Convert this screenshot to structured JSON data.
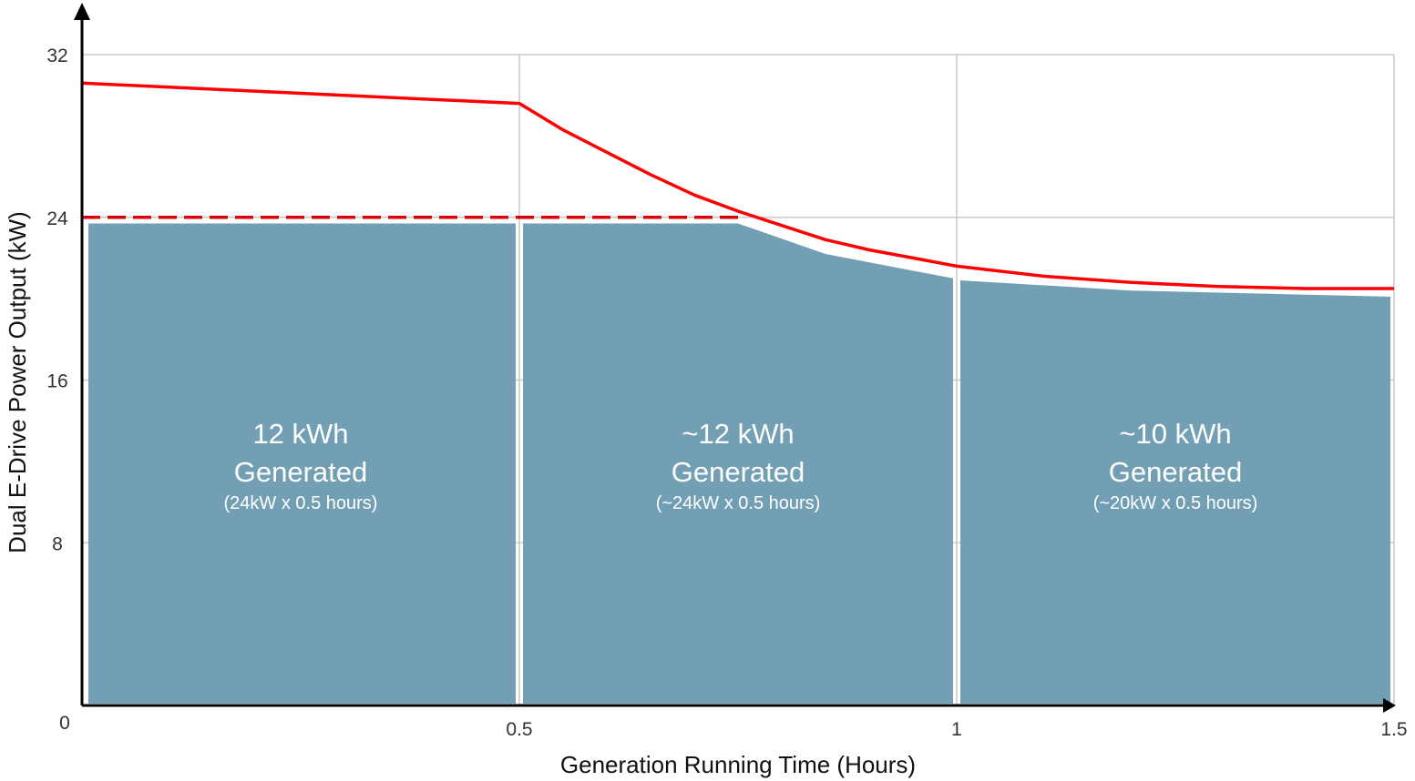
{
  "chart_data": {
    "type": "area",
    "xlabel": "Generation Running Time (Hours)",
    "ylabel": "Dual E-Drive Power Output (kW)",
    "xlim": [
      0,
      1.5
    ],
    "ylim": [
      0,
      32
    ],
    "x_ticks": [
      {
        "value": 0,
        "label": "0"
      },
      {
        "value": 0.5,
        "label": "0.5"
      },
      {
        "value": 1,
        "label": "1"
      },
      {
        "value": 1.5,
        "label": "1.5"
      }
    ],
    "y_ticks": [
      {
        "value": 8,
        "label": "8"
      },
      {
        "value": 16,
        "label": "16"
      },
      {
        "value": 24,
        "label": "24"
      },
      {
        "value": 32,
        "label": "32"
      }
    ],
    "grid": true,
    "max_output_line": {
      "color": "#ff0000",
      "x": [
        0,
        0.1,
        0.2,
        0.3,
        0.4,
        0.5,
        0.55,
        0.6,
        0.65,
        0.7,
        0.75,
        0.8,
        0.85,
        0.9,
        0.95,
        1.0,
        1.1,
        1.2,
        1.3,
        1.4,
        1.5
      ],
      "y": [
        30.6,
        30.4,
        30.2,
        30.0,
        29.8,
        29.6,
        28.3,
        27.2,
        26.1,
        25.1,
        24.3,
        23.6,
        22.9,
        22.4,
        22.0,
        21.6,
        21.1,
        20.8,
        20.6,
        20.5,
        20.5
      ]
    },
    "rated_line": {
      "color": "#dd0000",
      "style": "dashed",
      "y": 24,
      "x_range": [
        0,
        0.75
      ]
    },
    "segments": [
      {
        "x_range": [
          0,
          0.5
        ],
        "x": [
          0,
          0.5
        ],
        "top": [
          23.7,
          23.7
        ],
        "big_label_1": "12 kWh",
        "big_label_2": "Generated",
        "small_label": "(24kW x 0.5 hours)"
      },
      {
        "x_range": [
          0.5,
          1.0
        ],
        "x": [
          0.5,
          0.75,
          0.85,
          1.0
        ],
        "top": [
          23.7,
          23.7,
          22.2,
          21.0
        ],
        "big_label_1": "~12 kWh",
        "big_label_2": "Generated",
        "small_label": "(~24kW x 0.5 hours)"
      },
      {
        "x_range": [
          1.0,
          1.5
        ],
        "x": [
          1.0,
          1.2,
          1.5
        ],
        "top": [
          20.9,
          20.4,
          20.1
        ],
        "big_label_1": "~10 kWh",
        "big_label_2": "Generated",
        "small_label": "(~20kW x 0.5 hours)"
      }
    ],
    "fill_color": "#739fb5"
  }
}
